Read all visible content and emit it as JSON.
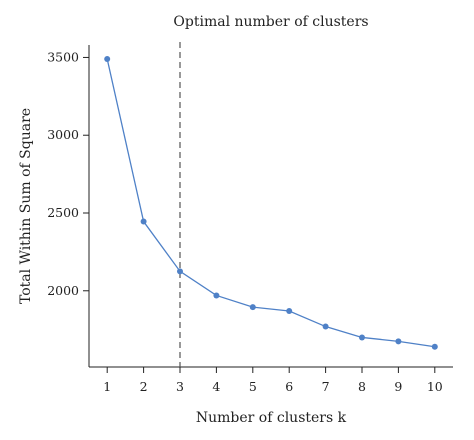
{
  "chart_data": {
    "type": "line",
    "title": "Optimal number of clusters",
    "xlabel": "Number of clusters k",
    "ylabel": "Total Within Sum of Square",
    "x": [
      1,
      2,
      3,
      4,
      5,
      6,
      7,
      8,
      9,
      10
    ],
    "x_tick_labels": [
      "1",
      "2",
      "3",
      "4",
      "5",
      "6",
      "7",
      "8",
      "9",
      "10"
    ],
    "y_ticks": [
      2000,
      2500,
      3000,
      3500
    ],
    "y_tick_labels": [
      "2000",
      "2500",
      "3000",
      "3500"
    ],
    "xlim": [
      0.5,
      10.5
    ],
    "ylim": [
      1510,
      3580
    ],
    "series": [
      {
        "values": [
          3490,
          2445,
          2125,
          1970,
          1895,
          1870,
          1770,
          1700,
          1675,
          1640
        ]
      }
    ],
    "reference_line": {
      "x": 3,
      "style": "dashed"
    },
    "grid": false,
    "legend": "none",
    "colors": {
      "series": "#4f81c7",
      "axis": "#222222",
      "reference_line": "#555555"
    }
  }
}
